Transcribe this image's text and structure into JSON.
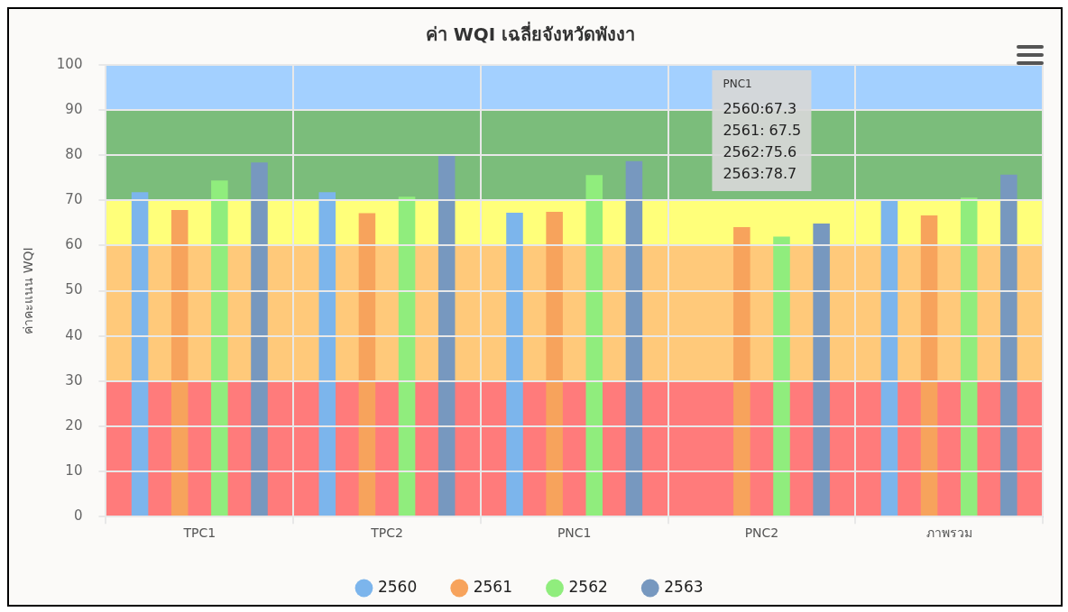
{
  "chart_data": {
    "type": "bar",
    "title": "ค่า WQI เฉลี่ยจังหวัดพังงา",
    "ylabel": "ค่าคะแนน WQI",
    "categories": [
      "TPC1",
      "TPC2",
      "PNC1",
      "PNC2",
      "ภาพรวม"
    ],
    "series": [
      {
        "name": "2560",
        "color": "#7cb5ec",
        "values": [
          71.8,
          71.8,
          67.3,
          null,
          70.1
        ]
      },
      {
        "name": "2561",
        "color": "#f7a35c",
        "values": [
          67.9,
          67.2,
          67.5,
          64.1,
          66.7
        ]
      },
      {
        "name": "2562",
        "color": "#90ed7d",
        "values": [
          74.4,
          70.8,
          75.6,
          62.0,
          70.6
        ]
      },
      {
        "name": "2563",
        "color": "#7798bf",
        "values": [
          78.4,
          80.1,
          78.7,
          64.9,
          75.7
        ]
      }
    ],
    "ylim": [
      0,
      100
    ],
    "yticks": [
      0,
      10,
      20,
      30,
      40,
      50,
      60,
      70,
      80,
      90,
      100
    ],
    "bands": [
      {
        "axis": "y",
        "from": 0,
        "to": 30,
        "label": null,
        "color": "#ff7b7b"
      },
      {
        "axis": "y",
        "from": 30,
        "to": 60,
        "label": null,
        "color": "#ffc97a"
      },
      {
        "axis": "y",
        "from": 60,
        "to": 70,
        "label": null,
        "color": "#ffff7a"
      },
      {
        "axis": "y",
        "from": 70,
        "to": 90,
        "label": null,
        "color": "#7bbd7b"
      },
      {
        "axis": "y",
        "from": 90,
        "to": 100,
        "label": null,
        "color": "#a3d0ff"
      }
    ],
    "annotations": [
      "PNC1",
      "2560:67.3",
      "2561: 67.5",
      "2562:75.6",
      "2563:78.7"
    ],
    "grid": true,
    "legend": "bottom"
  }
}
